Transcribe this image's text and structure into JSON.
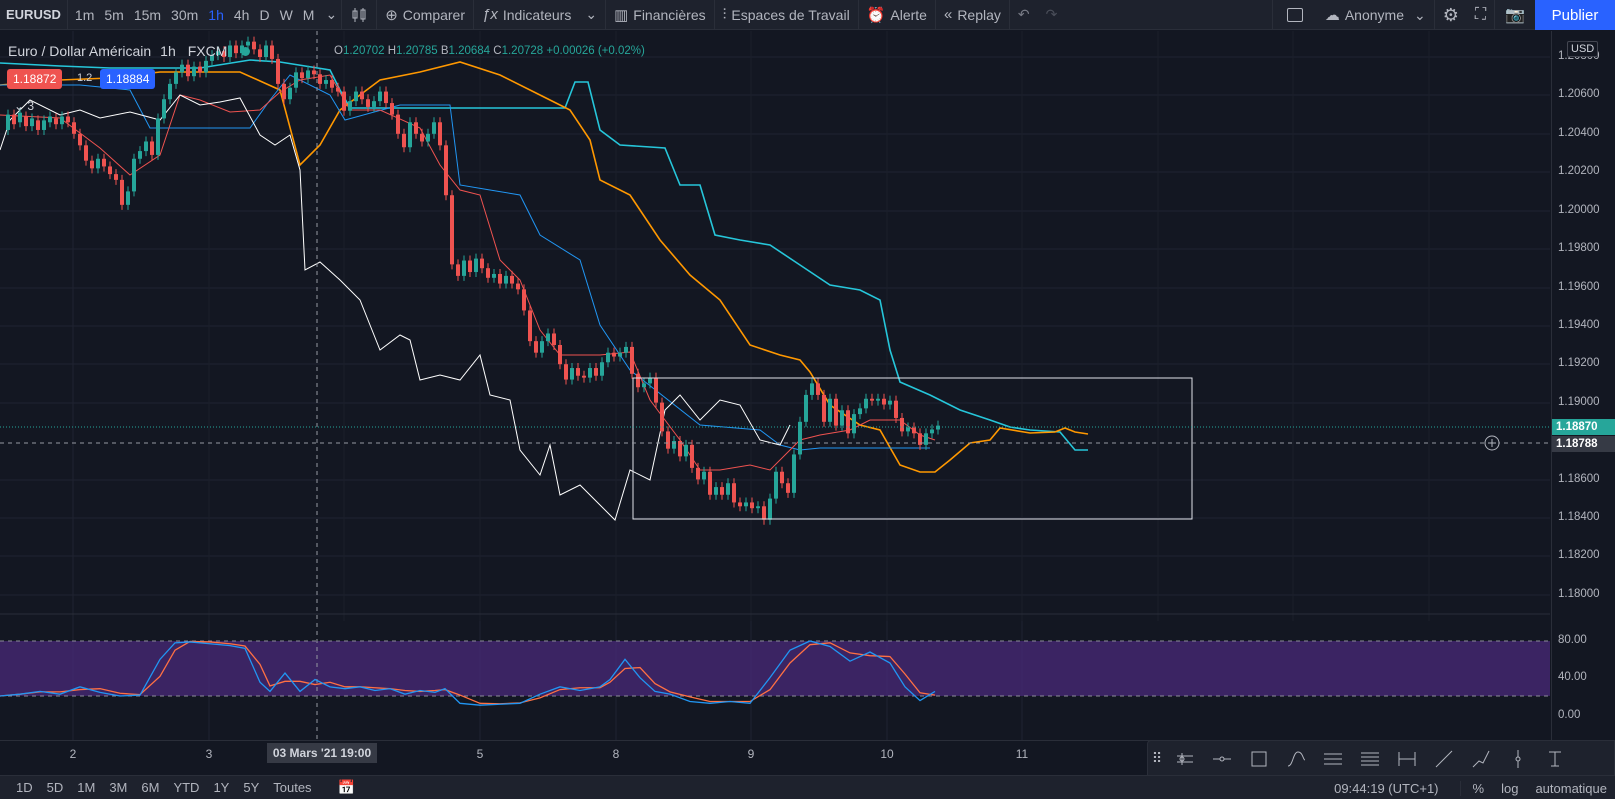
{
  "toolbar": {
    "symbol": "EURUSD",
    "timeframes": [
      "1m",
      "5m",
      "15m",
      "30m",
      "1h",
      "4h",
      "D",
      "W",
      "M"
    ],
    "active_timeframe": "1h",
    "compare": "Comparer",
    "indicators": "Indicateurs",
    "financials": "Financières",
    "workspaces": "Espaces de Travail",
    "alert": "Alerte",
    "replay": "Replay",
    "user": "Anonyme",
    "publish": "Publier"
  },
  "legend": {
    "title": "Euro / Dollar Américain",
    "interval": "1h",
    "exchange": "FXCM",
    "o_label": "O",
    "o": "1.20702",
    "h_label": "H",
    "h": "1.20785",
    "l_label": "B",
    "l": "1.20684",
    "c_label": "C",
    "c": "1.20728",
    "change": "+0.00026 (+0.02%)",
    "bid": "1.18872",
    "spread": "1.2",
    "ask": "1.18884",
    "indicator_count": "3"
  },
  "price_axis": {
    "currency": "USD",
    "labels": [
      "1.20800",
      "1.20600",
      "1.20400",
      "1.20200",
      "1.20000",
      "1.19800",
      "1.19600",
      "1.19400",
      "1.19200",
      "1.19000",
      "1.18600",
      "1.18400",
      "1.18200",
      "1.18000"
    ],
    "last_price": "1.18870",
    "crosshair_price": "1.18788",
    "osc_labels": [
      "80.00",
      "40.00",
      "0.00"
    ]
  },
  "time_axis": {
    "labels": [
      "2",
      "3",
      "5",
      "8",
      "9",
      "10",
      "11"
    ],
    "crosshair_label": "03 Mars '21   19:00"
  },
  "bottom": {
    "ranges": [
      "1D",
      "5D",
      "1M",
      "3M",
      "6M",
      "YTD",
      "1Y",
      "5Y",
      "Toutes"
    ],
    "clock": "09:44:19 (UTC+1)",
    "percent": "%",
    "log": "log",
    "auto": "automatique"
  },
  "colors": {
    "up": "#26a69a",
    "down": "#ef5350",
    "tenkan": "#ef5350",
    "kijun": "#2196f3",
    "chikou": "#ffffff",
    "span_a": "#ff9800",
    "span_b": "#26c6da",
    "stoch_k": "#2196f3",
    "stoch_d": "#ff7043",
    "osc_band": "#4a2a7a"
  },
  "drawing_tools": [
    "info-line-icon",
    "horizontal-ray-icon",
    "rectangle-icon",
    "path-icon",
    "parallel-channel-icon",
    "fib-retracement-icon",
    "date-price-range-icon",
    "trend-line-icon",
    "polyline-icon",
    "vertical-line-icon",
    "anchored-text-icon"
  ]
}
